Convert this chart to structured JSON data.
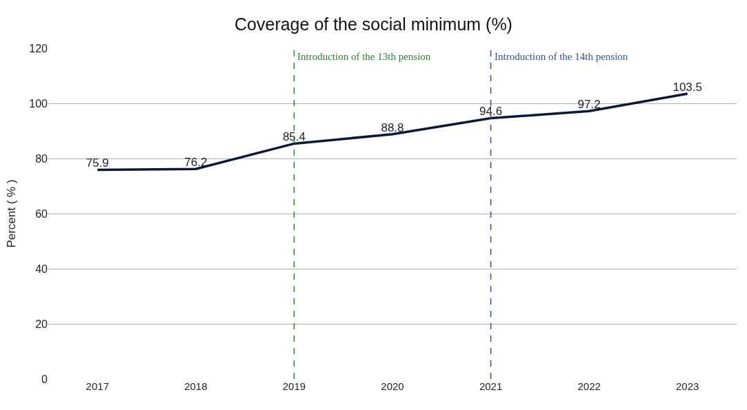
{
  "chart_data": {
    "type": "line",
    "title": "Coverage of the social minimum (%)",
    "ylabel": "Percent ( % )",
    "categories": [
      "2017",
      "2018",
      "2019",
      "2020",
      "2021",
      "2022",
      "2023"
    ],
    "series": [
      {
        "color": "#0b1638",
        "values": [
          75.9,
          76.2,
          85.4,
          88.8,
          94.6,
          97.2,
          103.5
        ]
      }
    ],
    "ylim": [
      0,
      120
    ],
    "yticks": [
      0,
      20,
      40,
      60,
      80,
      100,
      120
    ],
    "grid": "y",
    "data_labels": true,
    "marker": "none",
    "line_style": "solid",
    "ref_lines": [
      {
        "axis": "x",
        "value": "2019",
        "label": "Introduction of the 13th pension",
        "color": "#2e7d32",
        "line_style": "dashed"
      },
      {
        "axis": "x",
        "value": "2021",
        "label": "Introduction of the 14th pension",
        "color": "#2f4f8f",
        "line_style": "dashed"
      }
    ]
  }
}
